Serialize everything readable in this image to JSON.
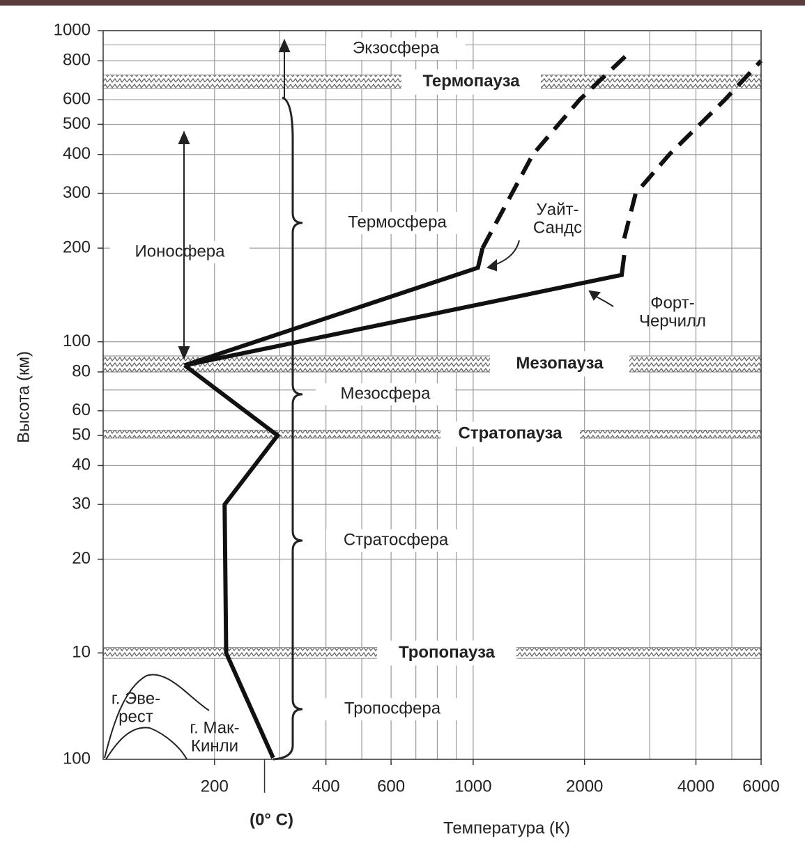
{
  "chart_data": {
    "type": "line",
    "xlabel": "Температура (К)",
    "ylabel": "Высота (км)",
    "log_x": true,
    "log_y": true,
    "xlim": [
      100,
      6000
    ],
    "ylim": [
      4.55,
      1000
    ],
    "xticks": [
      200,
      400,
      600,
      1000,
      2000,
      4000,
      6000
    ],
    "yticks": [
      10,
      20,
      30,
      40,
      50,
      60,
      80,
      100,
      200,
      300,
      400,
      500,
      600,
      800,
      1000
    ],
    "y_bottom_label": "100",
    "xgrid": [
      200,
      300,
      400,
      500,
      600,
      700,
      800,
      900,
      1000,
      2000,
      3000,
      4000,
      5000,
      6000
    ],
    "ygrid": [
      10,
      20,
      30,
      40,
      50,
      60,
      70,
      80,
      90,
      100,
      200,
      300,
      400,
      500,
      600,
      700,
      800,
      900,
      1000
    ],
    "zero_celsius": {
      "value": 273,
      "label": "(0° C)"
    },
    "series": [
      {
        "x": [
          288,
          215,
          213,
          296,
          166
        ],
        "values": [
          4.6,
          10,
          30,
          50,
          84
        ],
        "dashed": false
      },
      {
        "x": [
          166,
          1030,
          1060
        ],
        "values": [
          84,
          173,
          200
        ],
        "dashed": false
      },
      {
        "x": [
          1060,
          1450,
          1940,
          2670
        ],
        "values": [
          200,
          400,
          600,
          860
        ],
        "dashed": true
      },
      {
        "x": [
          166,
          2520,
          2560
        ],
        "values": [
          84,
          164,
          190
        ],
        "dashed": false
      },
      {
        "x": [
          2560,
          2750,
          3390,
          4790,
          6000
        ],
        "values": [
          215,
          300,
          400,
          600,
          800
        ],
        "dashed": true
      }
    ],
    "pauses": [
      {
        "label": "Термопауза",
        "range": [
          650,
          720
        ]
      },
      {
        "label": "Мезопауза",
        "range": [
          80,
          90
        ]
      },
      {
        "label": "Стратопауза",
        "range": [
          49,
          52
        ]
      },
      {
        "label": "Тропопауза",
        "range": [
          9.6,
          10.4
        ]
      }
    ],
    "layers": [
      "Экзосфера",
      "Термосфера",
      "Ионосфера",
      "Мезосфера",
      "Стратосфера",
      "Тропосфера"
    ],
    "annotations": [
      [
        "Уайт-",
        "Сандс"
      ],
      [
        "Форт-",
        "Черчилл"
      ],
      [
        "г. Эве-",
        "рест"
      ],
      [
        "г. Мак-",
        "Кинли"
      ]
    ]
  }
}
